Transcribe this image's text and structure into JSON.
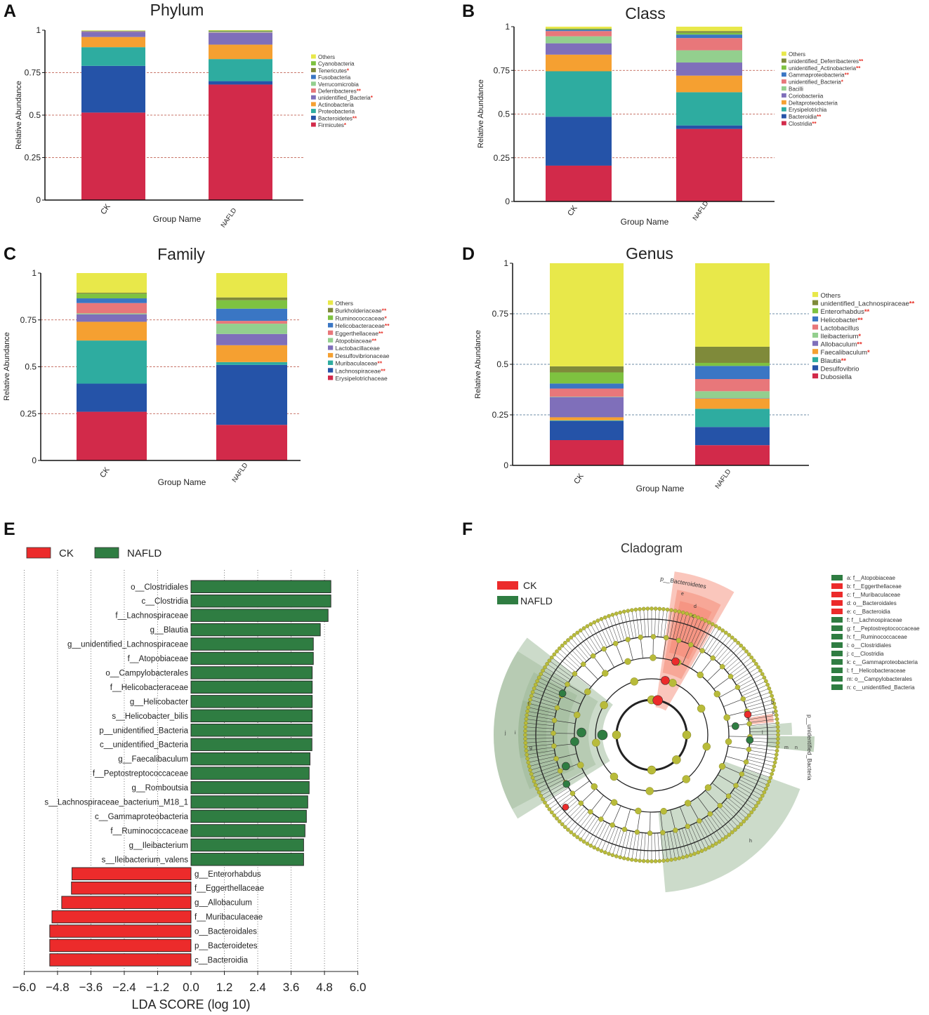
{
  "colors": {
    "CK": "#ec2b2b",
    "NAFLD": "#2f7d42",
    "ref_line": "#b84a3a",
    "sig_star": "#e8332a",
    "bar_edge": "#222222"
  },
  "chart_data": [
    {
      "panel": "A",
      "type": "bar",
      "stacked": true,
      "title": "Phylum",
      "xlabel": "Group Name",
      "ylabel": "Relative Abundance",
      "categories": [
        "CK",
        "NAFLD"
      ],
      "ylim": [
        0,
        1
      ],
      "yticks": [
        "0",
        "0.25",
        "0.5",
        "0.75",
        "1"
      ],
      "series": [
        {
          "name": "Firmicutes",
          "sig": "*",
          "color": "#d22a4a",
          "values": [
            0.515,
            0.68
          ]
        },
        {
          "name": "Bacteroidetes",
          "sig": "**",
          "color": "#2553a8",
          "values": [
            0.275,
            0.02
          ]
        },
        {
          "name": "Proteobacteria",
          "sig": "",
          "color": "#2eaca0",
          "values": [
            0.11,
            0.13
          ]
        },
        {
          "name": "Actinobacteria",
          "sig": "",
          "color": "#f5a031",
          "values": [
            0.06,
            0.085
          ]
        },
        {
          "name": "unidentified_Bacteria",
          "sig": "*",
          "color": "#7f6fba",
          "values": [
            0.03,
            0.07
          ]
        },
        {
          "name": "Deferribacteres",
          "sig": "**",
          "color": "#e8777a",
          "values": [
            0.002,
            0.002
          ]
        },
        {
          "name": "Verrucomicrobia",
          "sig": "",
          "color": "#93cf8e",
          "values": [
            0.001,
            0.004
          ]
        },
        {
          "name": "Fusobacteria",
          "sig": "",
          "color": "#3a76c4",
          "values": [
            0.001,
            0.001
          ]
        },
        {
          "name": "Tenericutes",
          "sig": "*",
          "color": "#7f8a3a",
          "values": [
            0.002,
            0.004
          ]
        },
        {
          "name": "Cyanobacteria",
          "sig": "",
          "color": "#7ec240",
          "values": [
            0.001,
            0.002
          ]
        },
        {
          "name": "Others",
          "sig": "",
          "color": "#e8e84a",
          "values": [
            0.002,
            0.002
          ]
        }
      ]
    },
    {
      "panel": "B",
      "type": "bar",
      "stacked": true,
      "title": "Class",
      "xlabel": "Group Name",
      "ylabel": "Relative Abundance",
      "categories": [
        "CK",
        "NAFLD"
      ],
      "ylim": [
        0,
        1
      ],
      "yticks": [
        "0",
        "0.25",
        "0.5",
        "0.75",
        "1"
      ],
      "series": [
        {
          "name": "Clostridia",
          "sig": "**",
          "color": "#d22a4a",
          "values": [
            0.205,
            0.415
          ]
        },
        {
          "name": "Bacteroidia",
          "sig": "**",
          "color": "#2553a8",
          "values": [
            0.28,
            0.02
          ]
        },
        {
          "name": "Erysipelotrichia",
          "sig": "",
          "color": "#2eaca0",
          "values": [
            0.26,
            0.19
          ]
        },
        {
          "name": "Deltaproteobacteria",
          "sig": "",
          "color": "#f5a031",
          "values": [
            0.095,
            0.095
          ]
        },
        {
          "name": "Coriobacteriia",
          "sig": "",
          "color": "#7f6fba",
          "values": [
            0.065,
            0.075
          ]
        },
        {
          "name": "Bacilli",
          "sig": "",
          "color": "#93cf8e",
          "values": [
            0.04,
            0.07
          ]
        },
        {
          "name": "unidentified_Bacteria",
          "sig": "*",
          "color": "#e8777a",
          "values": [
            0.03,
            0.07
          ]
        },
        {
          "name": "Gammaproteobacteria",
          "sig": "**",
          "color": "#3a76c4",
          "values": [
            0.007,
            0.02
          ]
        },
        {
          "name": "unidentified_Actinobacteria",
          "sig": "**",
          "color": "#7ec240",
          "values": [
            0.004,
            0.01
          ]
        },
        {
          "name": "unidentified_Deferribacteres",
          "sig": "**",
          "color": "#7f8a3a",
          "values": [
            0.003,
            0.01
          ]
        },
        {
          "name": "Others",
          "sig": "",
          "color": "#e8e84a",
          "values": [
            0.011,
            0.025
          ]
        }
      ]
    },
    {
      "panel": "C",
      "type": "bar",
      "stacked": true,
      "title": "Family",
      "xlabel": "Group Name",
      "ylabel": "Relative Abundance",
      "categories": [
        "CK",
        "NAFLD"
      ],
      "ylim": [
        0,
        1
      ],
      "yticks": [
        "0",
        "0.25",
        "0.5",
        "0.75",
        "1"
      ],
      "series": [
        {
          "name": "Erysipelotrichaceae",
          "sig": "",
          "color": "#d22a4a",
          "values": [
            0.26,
            0.19
          ]
        },
        {
          "name": "Lachnospiraceae",
          "sig": "**",
          "color": "#2553a8",
          "values": [
            0.15,
            0.32
          ]
        },
        {
          "name": "Muribaculaceae",
          "sig": "**",
          "color": "#2eaca0",
          "values": [
            0.23,
            0.015
          ]
        },
        {
          "name": "Desulfovibrionaceae",
          "sig": "",
          "color": "#f5a031",
          "values": [
            0.1,
            0.09
          ]
        },
        {
          "name": "Lactobacillaceae",
          "sig": "",
          "color": "#7f6fba",
          "values": [
            0.04,
            0.06
          ]
        },
        {
          "name": "Atopobiaceae",
          "sig": "**",
          "color": "#93cf8e",
          "values": [
            0.005,
            0.055
          ]
        },
        {
          "name": "Eggerthellaceae",
          "sig": "**",
          "color": "#e8777a",
          "values": [
            0.055,
            0.015
          ]
        },
        {
          "name": "Helicobacteraceae",
          "sig": "**",
          "color": "#3a76c4",
          "values": [
            0.025,
            0.065
          ]
        },
        {
          "name": "Ruminococcaceae",
          "sig": "*",
          "color": "#7ec240",
          "values": [
            0.025,
            0.045
          ]
        },
        {
          "name": "Burkholderiaceae",
          "sig": "**",
          "color": "#7f8a3a",
          "values": [
            0.005,
            0.015
          ]
        },
        {
          "name": "Others",
          "sig": "",
          "color": "#e8e84a",
          "values": [
            0.105,
            0.13
          ]
        }
      ]
    },
    {
      "panel": "D",
      "type": "bar",
      "stacked": true,
      "title": "Genus",
      "xlabel": "Group Name",
      "ylabel": "Relative Abundance",
      "categories": [
        "CK",
        "NAFLD"
      ],
      "ylim": [
        0,
        1
      ],
      "yticks": [
        "0",
        "0.25",
        "0.5",
        "0.75",
        "1"
      ],
      "series": [
        {
          "name": "Dubosiella",
          "sig": "",
          "color": "#d22a4a",
          "values": [
            0.125,
            0.1
          ]
        },
        {
          "name": "Desulfovibrio",
          "sig": "",
          "color": "#2553a8",
          "values": [
            0.095,
            0.09
          ]
        },
        {
          "name": "Blautia",
          "sig": "**",
          "color": "#2eaca0",
          "values": [
            0.003,
            0.09
          ]
        },
        {
          "name": "Faecalibaculum",
          "sig": "*",
          "color": "#f5a031",
          "values": [
            0.015,
            0.05
          ]
        },
        {
          "name": "Allobaculum",
          "sig": "**",
          "color": "#7f6fba",
          "values": [
            0.1,
            0.002
          ]
        },
        {
          "name": "Ileibacterium",
          "sig": "*",
          "color": "#93cf8e",
          "values": [
            0.002,
            0.035
          ]
        },
        {
          "name": "Lactobacillus",
          "sig": "",
          "color": "#e8777a",
          "values": [
            0.04,
            0.06
          ]
        },
        {
          "name": "Helicobacter",
          "sig": "**",
          "color": "#3a76c4",
          "values": [
            0.025,
            0.065
          ]
        },
        {
          "name": "Enterorhabdus",
          "sig": "**",
          "color": "#7ec240",
          "values": [
            0.055,
            0.015
          ]
        },
        {
          "name": "unidentified_Lachnospiraceae",
          "sig": "**",
          "color": "#7f8a3a",
          "values": [
            0.03,
            0.08
          ]
        },
        {
          "name": "Others",
          "sig": "",
          "color": "#e8e84a",
          "values": [
            0.51,
            0.413
          ]
        }
      ]
    },
    {
      "panel": "E",
      "type": "bar",
      "orientation": "horizontal",
      "xlabel": "LDA SCORE (log 10)",
      "xlim": [
        -6.0,
        6.0
      ],
      "xticks": [
        "−6.0",
        "−4.8",
        "−3.6",
        "−2.4",
        "−1.2",
        "0.0",
        "1.2",
        "2.4",
        "3.6",
        "4.8",
        "6.0"
      ],
      "legend": [
        "CK",
        "NAFLD"
      ],
      "bars": [
        {
          "label": "o__Clostridiales",
          "value": 5.03,
          "group": "NAFLD"
        },
        {
          "label": "c__Clostridia",
          "value": 5.03,
          "group": "NAFLD"
        },
        {
          "label": "f__Lachnospiraceae",
          "value": 4.93,
          "group": "NAFLD"
        },
        {
          "label": "g__Blautia",
          "value": 4.65,
          "group": "NAFLD"
        },
        {
          "label": "g__unidentified_Lachnospiraceae",
          "value": 4.4,
          "group": "NAFLD"
        },
        {
          "label": "f__Atopobiaceae",
          "value": 4.4,
          "group": "NAFLD"
        },
        {
          "label": "o__Campylobacterales",
          "value": 4.36,
          "group": "NAFLD"
        },
        {
          "label": "f__Helicobacteraceae",
          "value": 4.36,
          "group": "NAFLD"
        },
        {
          "label": "g__Helicobacter",
          "value": 4.36,
          "group": "NAFLD"
        },
        {
          "label": "s__Helicobacter_bilis",
          "value": 4.36,
          "group": "NAFLD"
        },
        {
          "label": "p__unidentified_Bacteria",
          "value": 4.35,
          "group": "NAFLD"
        },
        {
          "label": "c__unidentified_Bacteria",
          "value": 4.35,
          "group": "NAFLD"
        },
        {
          "label": "g__Faecalibaculum",
          "value": 4.28,
          "group": "NAFLD"
        },
        {
          "label": "f__Peptostreptococcaceae",
          "value": 4.25,
          "group": "NAFLD"
        },
        {
          "label": "g__Romboutsia",
          "value": 4.25,
          "group": "NAFLD"
        },
        {
          "label": "s__Lachnospiraceae_bacterium_M18_1",
          "value": 4.2,
          "group": "NAFLD"
        },
        {
          "label": "c__Gammaproteobacteria",
          "value": 4.15,
          "group": "NAFLD"
        },
        {
          "label": "f__Ruminococcaceae",
          "value": 4.1,
          "group": "NAFLD"
        },
        {
          "label": "g__Ileibacterium",
          "value": 4.05,
          "group": "NAFLD"
        },
        {
          "label": "s__Ileibacterium_valens",
          "value": 4.05,
          "group": "NAFLD"
        },
        {
          "label": "g__Enterorhabdus",
          "value": -4.28,
          "group": "CK"
        },
        {
          "label": "f__Eggerthellaceae",
          "value": -4.3,
          "group": "CK"
        },
        {
          "label": "g__Allobaculum",
          "value": -4.65,
          "group": "CK"
        },
        {
          "label": "f__Muribaculaceae",
          "value": -5.0,
          "group": "CK"
        },
        {
          "label": "o__Bacteroidales",
          "value": -5.08,
          "group": "CK"
        },
        {
          "label": "p__Bacteroidetes",
          "value": -5.08,
          "group": "CK"
        },
        {
          "label": "c__Bacteroidia",
          "value": -5.08,
          "group": "CK"
        }
      ]
    }
  ],
  "panel_letters": [
    "A",
    "B",
    "C",
    "D",
    "E",
    "F"
  ],
  "cladogram": {
    "title": "Cladogram",
    "legend": [
      "CK",
      "NAFLD"
    ],
    "clade_labels": {
      "bacteroidetes": "p__Bacteroidetes",
      "unidentified_bacteria": "p__unidentified_Bacteria",
      "letters": [
        "a",
        "b",
        "c",
        "d",
        "e",
        "f",
        "g",
        "h",
        "i",
        "j",
        "k",
        "l",
        "m",
        "n"
      ]
    },
    "key": [
      {
        "text": "a: f__Atopobiaceae",
        "group": "NAFLD"
      },
      {
        "text": "b: f__Eggerthellaceae",
        "group": "CK"
      },
      {
        "text": "c: f__Muribaculaceae",
        "group": "CK"
      },
      {
        "text": "d: o__Bacteroidales",
        "group": "CK"
      },
      {
        "text": "e: c__Bacteroidia",
        "group": "CK"
      },
      {
        "text": "f: f__Lachnospiraceae",
        "group": "NAFLD"
      },
      {
        "text": "g: f__Peptostreptococcaceae",
        "group": "NAFLD"
      },
      {
        "text": "h: f__Ruminococcaceae",
        "group": "NAFLD"
      },
      {
        "text": "i: o__Clostridiales",
        "group": "NAFLD"
      },
      {
        "text": "j: c__Clostridia",
        "group": "NAFLD"
      },
      {
        "text": "k: c__Gammaproteobacteria",
        "group": "NAFLD"
      },
      {
        "text": "l: f__Helicobacteraceae",
        "group": "NAFLD"
      },
      {
        "text": "m: o__Campylobacterales",
        "group": "NAFLD"
      },
      {
        "text": "n: c__unidentified_Bacteria",
        "group": "NAFLD"
      }
    ]
  }
}
